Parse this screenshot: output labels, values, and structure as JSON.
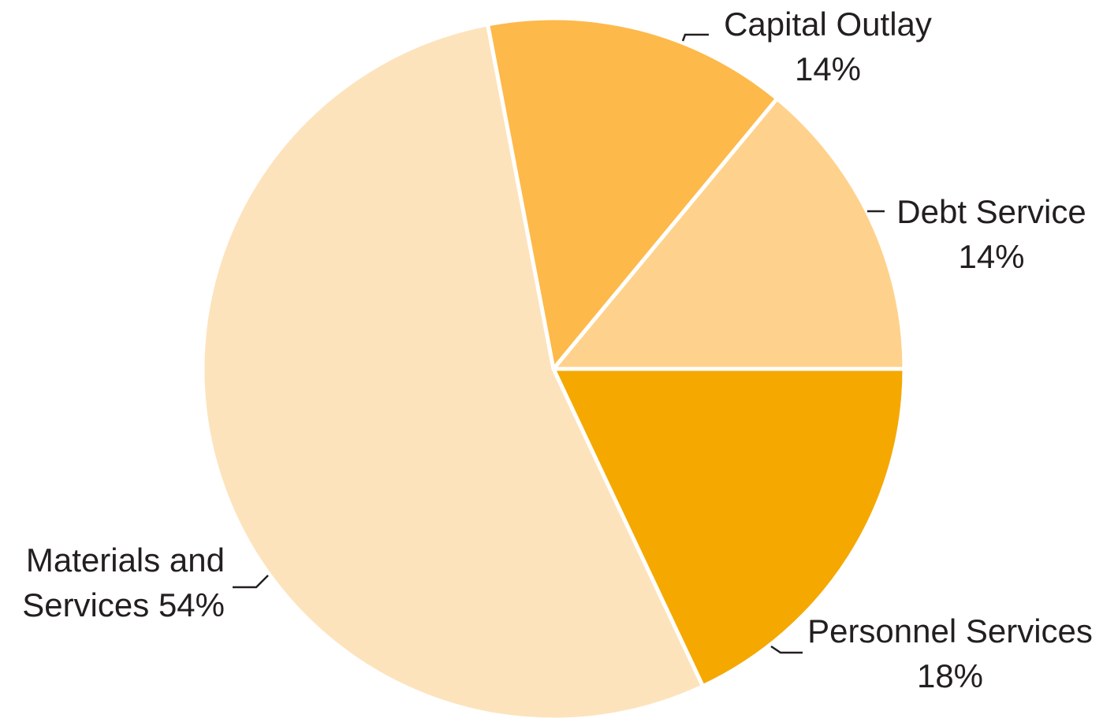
{
  "chart_data": {
    "type": "pie",
    "categories": [
      "Personnel Services",
      "Materials and Services",
      "Capital Outlay",
      "Debt Service"
    ],
    "values": [
      18,
      54,
      14,
      14
    ],
    "value_labels": [
      "18%",
      "54%",
      "14%",
      "14%"
    ],
    "colors": [
      "#f5a800",
      "#fde3bc",
      "#fdb94a",
      "#fed28c"
    ]
  }
}
